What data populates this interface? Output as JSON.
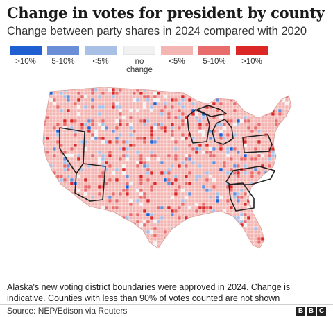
{
  "title": "Change in votes for president by county",
  "subtitle": "Change between party shares in 2024 compared with 2020",
  "legend": [
    {
      "label": ">10%",
      "color": "#1f5fd1"
    },
    {
      "label": "5-10%",
      "color": "#6a8fd8"
    },
    {
      "label": "<5%",
      "color": "#a8bfe6"
    },
    {
      "label": "no\nchange",
      "color": "#f1f1f1"
    },
    {
      "label": "<5%",
      "color": "#f4b6b3"
    },
    {
      "label": "5-10%",
      "color": "#e96c6c"
    },
    {
      "label": ">10%",
      "color": "#dc2727"
    }
  ],
  "note": "Alaska's new voting district boundaries were approved in 2024. Change is indicative. Counties with less than 90% of votes counted are not shown",
  "source": "Source: NEP/Edison via Reuters",
  "logo": [
    "B",
    "B",
    "C"
  ],
  "colors": {
    "base_fill": "#f3bcb6",
    "no_data": "#ffffff",
    "county_lines": "#ffffff",
    "swing_state_outline": "#222222"
  },
  "map": {
    "highlighted_states": [
      "Nevada",
      "Arizona",
      "Wisconsin",
      "Michigan",
      "Pennsylvania",
      "Georgia",
      "North Carolina"
    ]
  }
}
